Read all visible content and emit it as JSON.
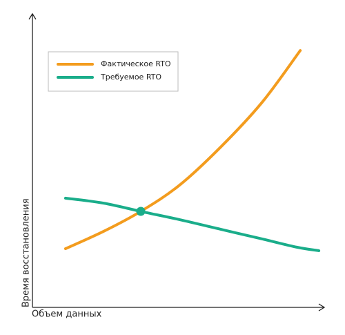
{
  "chart_data": {
    "type": "line",
    "x_label": "Объем данных",
    "y_label": "Время восстановления",
    "xlim": [
      0,
      100
    ],
    "ylim": [
      0,
      100
    ],
    "series": [
      {
        "name": "Фактическое RTO",
        "color": "#f39c1e",
        "x": [
          11.4,
          24.5,
          37.3,
          50.6,
          64.8,
          79.1,
          92.2
        ],
        "values": [
          20,
          25.9,
          32.7,
          41.6,
          54.6,
          69.9,
          87.5
        ]
      },
      {
        "name": "Требуемое RTO",
        "color": "#1aad8a",
        "x": [
          11.4,
          24.5,
          37.3,
          50.6,
          64.8,
          79.1,
          91,
          98.6
        ],
        "values": [
          37.2,
          35.5,
          32.7,
          29.9,
          26.6,
          23.3,
          20.5,
          19.3
        ]
      }
    ],
    "markers": [
      {
        "x": 37.3,
        "y": 32.7,
        "color": "#1aad8a"
      }
    ],
    "legend": "upper left"
  }
}
